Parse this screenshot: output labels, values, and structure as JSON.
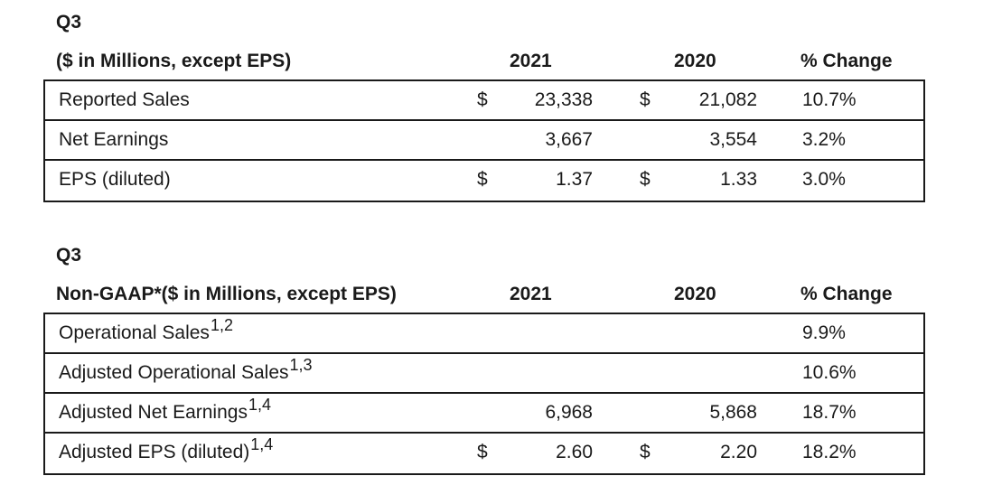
{
  "reported": {
    "quarter": "Q3",
    "heading": "($ in Millions, except EPS)",
    "col_2021": "2021",
    "col_2020": "2020",
    "col_change": "% Change",
    "rows": [
      {
        "label": "Reported Sales",
        "sup": "",
        "cur1": "$",
        "v2021": "23,338",
        "cur2": "$",
        "v2020": "21,082",
        "change": "10.7%"
      },
      {
        "label": "Net Earnings",
        "sup": "",
        "cur1": "",
        "v2021": "3,667",
        "cur2": "",
        "v2020": "3,554",
        "change": "3.2%"
      },
      {
        "label": "EPS (diluted)",
        "sup": "",
        "cur1": "$",
        "v2021": "1.37",
        "cur2": "$",
        "v2020": "1.33",
        "change": "3.0%"
      }
    ]
  },
  "non_gaap": {
    "quarter": "Q3",
    "heading": "Non-GAAP*($ in Millions, except EPS)",
    "col_2021": "2021",
    "col_2020": "2020",
    "col_change": "% Change",
    "rows": [
      {
        "label": "Operational Sales",
        "sup": "1,2",
        "cur1": "",
        "v2021": "",
        "cur2": "",
        "v2020": "",
        "change": "9.9%"
      },
      {
        "label": "Adjusted Operational Sales",
        "sup": "1,3",
        "cur1": "",
        "v2021": "",
        "cur2": "",
        "v2020": "",
        "change": "10.6%"
      },
      {
        "label": "Adjusted Net Earnings",
        "sup": "1,4",
        "cur1": "",
        "v2021": "6,968",
        "cur2": "",
        "v2020": "5,868",
        "change": "18.7%"
      },
      {
        "label": "Adjusted EPS (diluted)",
        "sup": "1,4",
        "cur1": "$",
        "v2021": "2.60",
        "cur2": "$",
        "v2020": "2.20",
        "change": "18.2%"
      }
    ]
  }
}
